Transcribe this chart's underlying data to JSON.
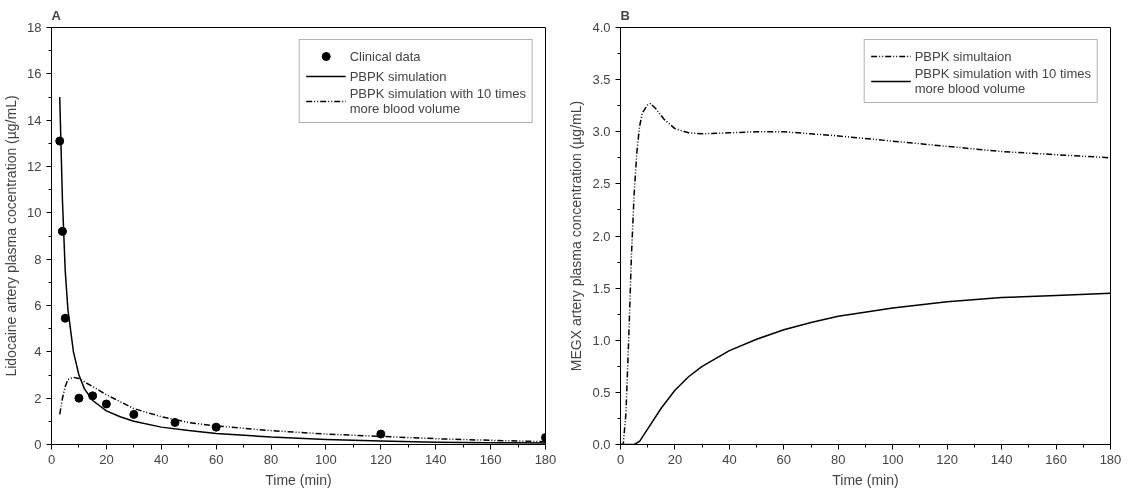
{
  "chart_data": [
    {
      "type": "line",
      "title": "A",
      "xlabel": "Time (min)",
      "ylabel": "Lidocaine artery plasma cocentration (µg/mL)",
      "xlim": [
        0,
        180
      ],
      "ylim": [
        0,
        18
      ],
      "xticks": [
        0,
        20,
        40,
        60,
        80,
        100,
        120,
        140,
        160,
        180
      ],
      "yticks": [
        0,
        2,
        4,
        6,
        8,
        10,
        12,
        14,
        16,
        18
      ],
      "grid": false,
      "legend": "top right",
      "series": [
        {
          "name": "Clinical data",
          "type": "scatter",
          "marker": "circle",
          "color": "#000000",
          "x": [
            3,
            4,
            5,
            10,
            15,
            20,
            30,
            45,
            60,
            120,
            180
          ],
          "values": [
            13.1,
            9.2,
            5.45,
            2.0,
            2.1,
            1.75,
            1.3,
            0.95,
            0.75,
            0.45,
            0.3
          ]
        },
        {
          "name": "PBPK simulation",
          "line_style": "solid",
          "color": "#000000",
          "x": [
            3,
            4,
            5,
            6,
            8,
            10,
            12,
            15,
            20,
            25,
            30,
            40,
            50,
            60,
            80,
            100,
            120,
            140,
            160,
            180
          ],
          "values": [
            15.0,
            10.5,
            7.5,
            5.8,
            4.0,
            3.0,
            2.4,
            1.9,
            1.45,
            1.2,
            1.0,
            0.75,
            0.6,
            0.48,
            0.32,
            0.22,
            0.15,
            0.1,
            0.08,
            0.06
          ]
        },
        {
          "name": "PBPK simulation with 10 times more blood volume",
          "line_style": "dashed",
          "color": "#000000",
          "x": [
            3,
            4,
            5,
            6,
            8,
            10,
            12,
            15,
            20,
            30,
            40,
            50,
            60,
            80,
            100,
            120,
            140,
            160,
            180
          ],
          "values": [
            1.3,
            2.0,
            2.5,
            2.8,
            2.9,
            2.85,
            2.7,
            2.5,
            2.15,
            1.55,
            1.2,
            0.95,
            0.8,
            0.6,
            0.45,
            0.35,
            0.25,
            0.18,
            0.12
          ]
        }
      ]
    },
    {
      "type": "line",
      "title": "B",
      "xlabel": "Time (min)",
      "ylabel": "MEGX artery plasma concentration (µg/mL)",
      "xlim": [
        0,
        180
      ],
      "ylim": [
        0,
        4
      ],
      "xticks": [
        0,
        20,
        40,
        60,
        80,
        100,
        120,
        140,
        160,
        180
      ],
      "yticks": [
        {
          "value": 0,
          "label": "0.0"
        },
        {
          "value": 0.5,
          "label": "0.5"
        },
        {
          "value": 1,
          "label": "1.0"
        },
        {
          "value": 1.5,
          "label": "1.5"
        },
        {
          "value": 2,
          "label": "2.0"
        },
        {
          "value": 2.5,
          "label": "2.5"
        },
        {
          "value": 3,
          "label": "3.0"
        },
        {
          "value": 3.5,
          "label": "3.5"
        },
        {
          "value": 4,
          "label": "4.0"
        }
      ],
      "grid": false,
      "legend": "top right",
      "series": [
        {
          "name": "PBPK simultaion",
          "line_style": "dashed",
          "color": "#000000",
          "x": [
            0,
            1,
            2,
            3,
            4,
            5,
            6,
            7,
            8,
            10,
            11,
            13,
            16,
            20,
            25,
            30,
            40,
            50,
            60,
            70,
            80,
            100,
            120,
            140,
            160,
            180
          ],
          "values": [
            0,
            0,
            0.3,
            1.0,
            1.8,
            2.4,
            2.8,
            3.05,
            3.18,
            3.26,
            3.27,
            3.22,
            3.12,
            3.03,
            2.99,
            2.98,
            2.99,
            3.0,
            3.0,
            2.98,
            2.96,
            2.91,
            2.86,
            2.81,
            2.78,
            2.75
          ]
        },
        {
          "name": "PBPK simulation with 10 times more blood volume",
          "line_style": "solid",
          "color": "#000000",
          "x": [
            0,
            3,
            5,
            7,
            10,
            15,
            20,
            25,
            30,
            40,
            50,
            60,
            70,
            80,
            100,
            120,
            140,
            160,
            180
          ],
          "values": [
            0,
            0,
            0,
            0.03,
            0.15,
            0.35,
            0.52,
            0.65,
            0.75,
            0.9,
            1.01,
            1.1,
            1.17,
            1.23,
            1.31,
            1.37,
            1.41,
            1.43,
            1.45
          ]
        }
      ]
    }
  ]
}
